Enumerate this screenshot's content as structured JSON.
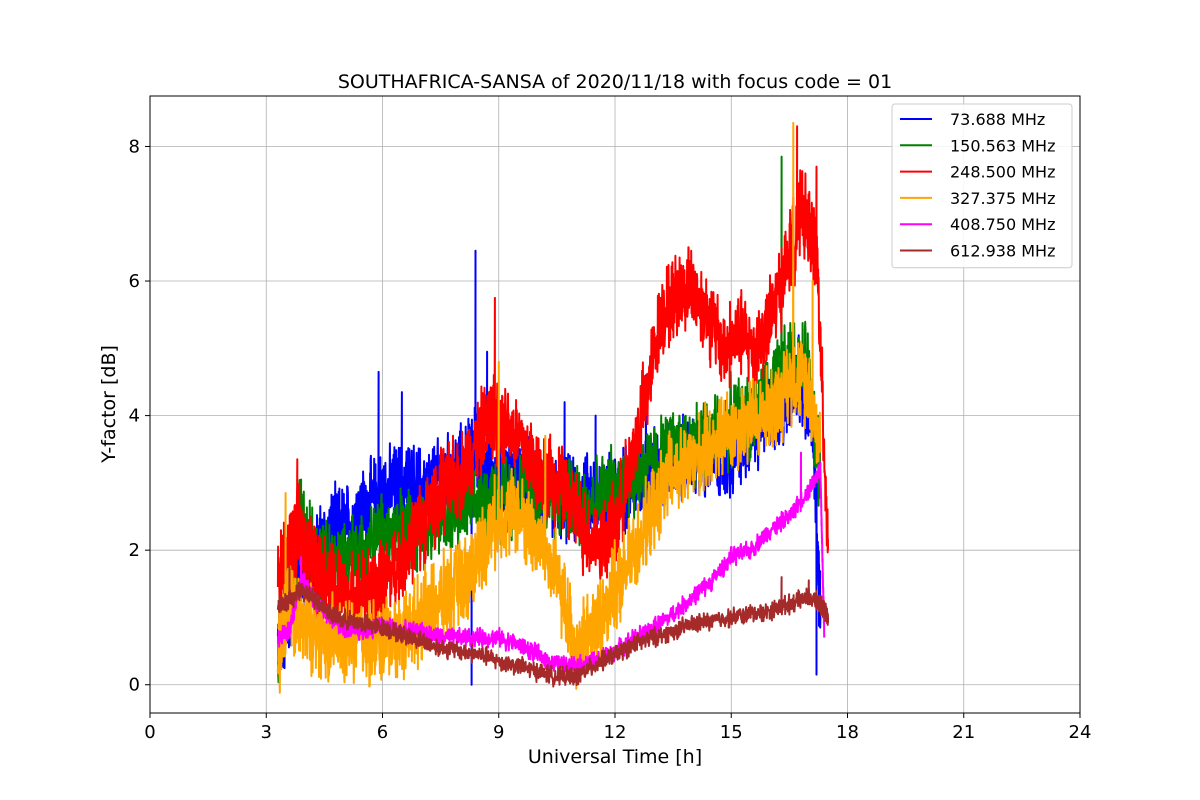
{
  "chart_data": {
    "type": "line",
    "title": "SOUTHAFRICA-SANSA of 2020/11/18 with focus code = 01",
    "xlabel": "Universal Time [h]",
    "ylabel": "Y-factor [dB]",
    "xlim": [
      0,
      24
    ],
    "ylim": [
      -0.42,
      8.75
    ],
    "xticks": [
      0,
      3,
      6,
      9,
      12,
      15,
      18,
      21,
      24
    ],
    "yticks": [
      0,
      2,
      4,
      6,
      8
    ],
    "grid": true,
    "legend_position": "top-right",
    "series": [
      {
        "name": "73.688 MHz",
        "legend_label": "  73.688 MHz",
        "color": "#0000ff",
        "x": [
          3.3,
          3.5,
          3.8,
          4.2,
          4.5,
          4.8,
          5.2,
          5.5,
          5.9,
          6.2,
          6.6,
          7.0,
          7.4,
          7.8,
          8.2,
          8.4,
          8.6,
          9.0,
          9.4,
          9.8,
          10.2,
          10.6,
          11.0,
          11.4,
          11.8,
          12.2,
          12.6,
          13.0,
          13.5,
          14.0,
          14.5,
          15.0,
          15.5,
          16.0,
          16.5,
          16.8,
          17.1,
          17.3
        ],
        "y": [
          0.6,
          0.9,
          1.5,
          1.9,
          2.1,
          2.3,
          2.4,
          2.6,
          2.8,
          2.9,
          3.0,
          2.9,
          3.0,
          3.1,
          3.3,
          3.5,
          3.2,
          3.0,
          3.1,
          3.0,
          2.9,
          2.8,
          2.7,
          2.8,
          2.9,
          2.9,
          3.1,
          3.2,
          3.3,
          3.4,
          3.3,
          3.4,
          3.8,
          4.0,
          4.3,
          4.5,
          4.0,
          1.0
        ],
        "spikes": [
          [
            5.9,
            4.65
          ],
          [
            6.5,
            4.35
          ],
          [
            8.4,
            6.45
          ],
          [
            8.3,
            0.0
          ],
          [
            8.7,
            4.95
          ],
          [
            10.7,
            4.2
          ],
          [
            11.5,
            4.0
          ],
          [
            12.8,
            4.6
          ],
          [
            17.2,
            0.15
          ]
        ]
      },
      {
        "name": "150.563 MHz",
        "legend_label": "150.563 MHz",
        "color": "#008000",
        "x": [
          3.3,
          3.6,
          3.9,
          4.2,
          4.6,
          5.0,
          5.5,
          6.0,
          6.5,
          7.0,
          7.5,
          8.0,
          8.5,
          9.0,
          9.5,
          10.0,
          10.5,
          11.0,
          11.5,
          12.0,
          12.5,
          13.0,
          13.5,
          14.0,
          14.5,
          15.0,
          15.5,
          16.0,
          16.5,
          17.0,
          17.3
        ],
        "y": [
          0.3,
          1.6,
          2.5,
          1.9,
          1.8,
          1.9,
          2.0,
          2.2,
          2.3,
          2.4,
          2.5,
          2.6,
          2.7,
          2.8,
          2.9,
          2.9,
          2.8,
          2.7,
          2.8,
          2.9,
          3.1,
          3.3,
          3.5,
          3.6,
          3.7,
          3.9,
          4.0,
          4.3,
          4.8,
          4.7,
          3.0
        ],
        "spikes": [
          [
            3.9,
            3.05
          ],
          [
            16.3,
            7.85
          ],
          [
            16.9,
            5.1
          ]
        ]
      },
      {
        "name": "248.500 MHz",
        "legend_label": "248.500 MHz",
        "color": "#ff0000",
        "x": [
          3.3,
          3.6,
          3.9,
          4.2,
          4.5,
          4.8,
          5.2,
          5.6,
          6.0,
          6.4,
          6.8,
          7.2,
          7.6,
          8.0,
          8.4,
          8.8,
          9.2,
          9.6,
          10.0,
          10.4,
          10.8,
          11.2,
          11.6,
          12.0,
          12.4,
          12.8,
          13.2,
          13.6,
          14.0,
          14.4,
          14.8,
          15.2,
          15.6,
          16.0,
          16.4,
          16.8,
          17.2,
          17.5
        ],
        "y": [
          1.7,
          2.0,
          2.3,
          1.8,
          1.6,
          1.4,
          1.3,
          1.4,
          1.5,
          1.8,
          2.2,
          2.6,
          2.9,
          3.1,
          3.6,
          4.0,
          3.9,
          3.6,
          3.2,
          3.0,
          2.8,
          2.3,
          2.1,
          2.3,
          3.3,
          4.3,
          5.5,
          5.8,
          5.9,
          5.5,
          5.0,
          5.2,
          5.0,
          5.4,
          6.2,
          7.0,
          6.5,
          2.0
        ],
        "spikes": [
          [
            3.8,
            3.35
          ],
          [
            8.9,
            5.75
          ],
          [
            13.9,
            6.5
          ],
          [
            16.7,
            8.3
          ],
          [
            17.2,
            7.7
          ]
        ]
      },
      {
        "name": "327.375 MHz",
        "legend_label": "327.375 MHz",
        "color": "#ffa500",
        "x": [
          3.3,
          3.6,
          3.9,
          4.2,
          4.6,
          5.0,
          5.4,
          5.8,
          6.2,
          6.6,
          7.0,
          7.4,
          7.8,
          8.2,
          8.6,
          9.0,
          9.4,
          9.8,
          10.2,
          10.6,
          11.0,
          11.4,
          11.8,
          12.2,
          12.6,
          13.0,
          13.4,
          13.8,
          14.2,
          14.6,
          15.0,
          15.4,
          15.8,
          16.2,
          16.6,
          17.0,
          17.3
        ],
        "y": [
          0.4,
          1.3,
          0.9,
          0.8,
          0.7,
          0.6,
          0.7,
          0.6,
          0.7,
          0.8,
          1.0,
          1.2,
          1.4,
          1.6,
          2.1,
          2.5,
          2.6,
          2.3,
          2.0,
          1.4,
          0.5,
          0.8,
          1.2,
          1.6,
          2.1,
          2.6,
          3.1,
          3.2,
          3.4,
          3.6,
          3.8,
          3.9,
          4.0,
          4.2,
          4.6,
          4.5,
          3.5
        ],
        "spikes": [
          [
            3.5,
            2.85
          ],
          [
            9.0,
            4.8
          ],
          [
            10.2,
            3.7
          ],
          [
            16.6,
            8.35
          ],
          [
            17.1,
            6.0
          ]
        ]
      },
      {
        "name": "408.750 MHz",
        "legend_label": "408.750 MHz",
        "color": "#ff00ff",
        "x": [
          3.3,
          3.6,
          3.9,
          4.2,
          4.5,
          4.8,
          5.2,
          5.6,
          6.0,
          6.5,
          7.0,
          7.5,
          8.0,
          8.5,
          9.0,
          9.5,
          10.0,
          10.5,
          11.0,
          11.5,
          12.0,
          12.5,
          13.0,
          13.5,
          14.0,
          14.5,
          15.0,
          15.5,
          16.0,
          16.5,
          17.0,
          17.3,
          17.4
        ],
        "y": [
          0.7,
          0.8,
          1.6,
          1.3,
          1.1,
          0.9,
          0.8,
          0.8,
          0.9,
          0.8,
          0.8,
          0.7,
          0.7,
          0.7,
          0.7,
          0.6,
          0.45,
          0.3,
          0.3,
          0.35,
          0.5,
          0.7,
          0.85,
          1.05,
          1.3,
          1.55,
          1.9,
          2.0,
          2.3,
          2.5,
          2.9,
          3.2,
          0.7
        ],
        "spikes": [
          [
            3.9,
            1.9
          ],
          [
            16.8,
            3.45
          ],
          [
            17.3,
            3.3
          ]
        ]
      },
      {
        "name": "612.938 MHz",
        "legend_label": "612.938 MHz",
        "color": "#a52a2a",
        "x": [
          3.3,
          3.6,
          3.9,
          4.2,
          4.5,
          4.8,
          5.2,
          5.6,
          6.0,
          6.5,
          7.0,
          7.5,
          8.0,
          8.5,
          9.0,
          9.5,
          10.0,
          10.5,
          11.0,
          11.5,
          12.0,
          12.5,
          13.0,
          13.5,
          14.0,
          14.5,
          15.0,
          15.5,
          16.0,
          16.5,
          17.0,
          17.3,
          17.5
        ],
        "y": [
          1.2,
          1.25,
          1.4,
          1.3,
          1.15,
          1.0,
          0.95,
          0.9,
          0.85,
          0.75,
          0.65,
          0.55,
          0.5,
          0.45,
          0.35,
          0.28,
          0.2,
          0.12,
          0.12,
          0.3,
          0.45,
          0.6,
          0.7,
          0.8,
          0.9,
          0.95,
          1.0,
          1.05,
          1.1,
          1.2,
          1.3,
          1.2,
          1.0
        ],
        "spikes": [
          [
            3.6,
            1.75
          ],
          [
            16.3,
            1.6
          ],
          [
            17.0,
            1.55
          ]
        ]
      }
    ]
  }
}
